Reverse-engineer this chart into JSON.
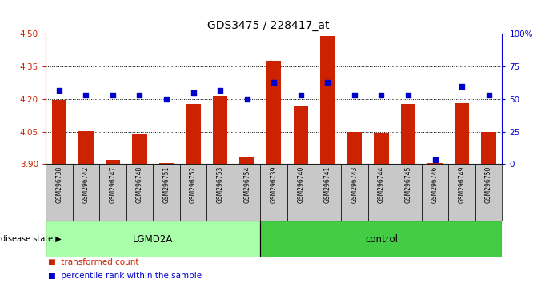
{
  "title": "GDS3475 / 228417_at",
  "samples": [
    "GSM296738",
    "GSM296742",
    "GSM296747",
    "GSM296748",
    "GSM296751",
    "GSM296752",
    "GSM296753",
    "GSM296754",
    "GSM296739",
    "GSM296740",
    "GSM296741",
    "GSM296743",
    "GSM296744",
    "GSM296745",
    "GSM296746",
    "GSM296749",
    "GSM296750"
  ],
  "transformed_count": [
    4.197,
    4.054,
    3.92,
    4.04,
    3.905,
    4.178,
    4.215,
    3.932,
    4.376,
    4.17,
    4.49,
    4.05,
    4.044,
    4.178,
    3.905,
    4.181,
    4.05
  ],
  "percentile_rank": [
    57,
    53,
    53,
    53,
    50,
    55,
    57,
    50,
    63,
    53,
    63,
    53,
    53,
    53,
    3,
    60,
    53
  ],
  "groups": {
    "LGMD2A": [
      0,
      1,
      2,
      3,
      4,
      5,
      6,
      7
    ],
    "control": [
      8,
      9,
      10,
      11,
      12,
      13,
      14,
      15,
      16
    ]
  },
  "ylim_left": [
    3.9,
    4.5
  ],
  "ylim_right": [
    0,
    100
  ],
  "yticks_left": [
    3.9,
    4.05,
    4.2,
    4.35,
    4.5
  ],
  "yticks_right": [
    0,
    25,
    50,
    75,
    100
  ],
  "ytick_labels_right": [
    "0",
    "25",
    "50",
    "75",
    "100%"
  ],
  "bar_color": "#cc2200",
  "dot_color": "#0000cc",
  "bar_bottom": 3.9,
  "group_color_lgmd": "#aaffaa",
  "group_color_ctrl": "#44cc44",
  "fig_width": 6.71,
  "fig_height": 3.54,
  "dpi": 100
}
